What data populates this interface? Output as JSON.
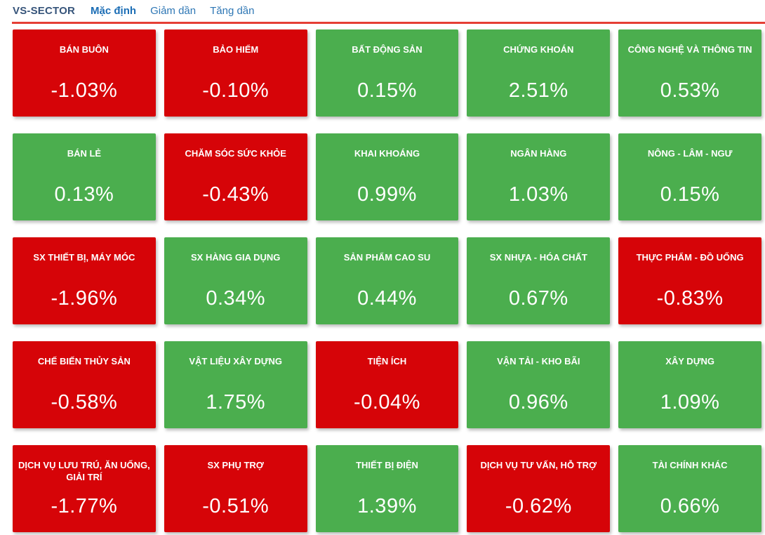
{
  "header": {
    "title": "VS-SECTOR",
    "tabs": [
      {
        "label": "Mặc định",
        "active": true
      },
      {
        "label": "Giảm dần",
        "active": false
      },
      {
        "label": "Tăng dần",
        "active": false
      }
    ]
  },
  "colors": {
    "gain": "#4bae4e",
    "loss": "#d60408",
    "divider": "#e53e35",
    "header_title": "#36547a",
    "tab_active": "#1b6db5",
    "tab_link": "#2e77b5"
  },
  "chart_data": {
    "type": "heatmap",
    "title": "VS-SECTOR",
    "columns": 5,
    "rows": 5,
    "value_unit": "%",
    "tiles": [
      {
        "name": "BÁN BUÔN",
        "value": -1.03,
        "display": "-1.03%",
        "direction": "down"
      },
      {
        "name": "BẢO HIỂM",
        "value": -0.1,
        "display": "-0.10%",
        "direction": "down"
      },
      {
        "name": "BẤT ĐỘNG SẢN",
        "value": 0.15,
        "display": "0.15%",
        "direction": "up"
      },
      {
        "name": "CHỨNG KHOÁN",
        "value": 2.51,
        "display": "2.51%",
        "direction": "up"
      },
      {
        "name": "CÔNG NGHỆ VÀ THÔNG TIN",
        "value": 0.53,
        "display": "0.53%",
        "direction": "up"
      },
      {
        "name": "BÁN LẺ",
        "value": 0.13,
        "display": "0.13%",
        "direction": "up"
      },
      {
        "name": "CHĂM SÓC SỨC KHỎE",
        "value": -0.43,
        "display": "-0.43%",
        "direction": "down"
      },
      {
        "name": "KHAI KHOÁNG",
        "value": 0.99,
        "display": "0.99%",
        "direction": "up"
      },
      {
        "name": "NGÂN HÀNG",
        "value": 1.03,
        "display": "1.03%",
        "direction": "up"
      },
      {
        "name": "NÔNG - LÂM - NGƯ",
        "value": 0.15,
        "display": "0.15%",
        "direction": "up"
      },
      {
        "name": "SX THIẾT BỊ, MÁY MÓC",
        "value": -1.96,
        "display": "-1.96%",
        "direction": "down"
      },
      {
        "name": "SX HÀNG GIA DỤNG",
        "value": 0.34,
        "display": "0.34%",
        "direction": "up"
      },
      {
        "name": "SẢN PHẨM CAO SU",
        "value": 0.44,
        "display": "0.44%",
        "direction": "up"
      },
      {
        "name": "SX NHỰA - HÓA CHẤT",
        "value": 0.67,
        "display": "0.67%",
        "direction": "up"
      },
      {
        "name": "THỰC PHẨM - ĐỒ UỐNG",
        "value": -0.83,
        "display": "-0.83%",
        "direction": "down"
      },
      {
        "name": "CHẾ BIẾN THỦY SẢN",
        "value": -0.58,
        "display": "-0.58%",
        "direction": "down"
      },
      {
        "name": "VẬT LIỆU XÂY DỰNG",
        "value": 1.75,
        "display": "1.75%",
        "direction": "up"
      },
      {
        "name": "TIỆN ÍCH",
        "value": -0.04,
        "display": "-0.04%",
        "direction": "down"
      },
      {
        "name": "VẬN TẢI - KHO BÃI",
        "value": 0.96,
        "display": "0.96%",
        "direction": "up"
      },
      {
        "name": "XÂY DỰNG",
        "value": 1.09,
        "display": "1.09%",
        "direction": "up"
      },
      {
        "name": "DỊCH VỤ LƯU TRÚ, ĂN UỐNG, GIẢI TRÍ",
        "value": -1.77,
        "display": "-1.77%",
        "direction": "down"
      },
      {
        "name": "SX PHỤ TRỢ",
        "value": -0.51,
        "display": "-0.51%",
        "direction": "down"
      },
      {
        "name": "THIẾT BỊ ĐIỆN",
        "value": 1.39,
        "display": "1.39%",
        "direction": "up"
      },
      {
        "name": "DỊCH VỤ TƯ VẤN, HỖ TRỢ",
        "value": -0.62,
        "display": "-0.62%",
        "direction": "down"
      },
      {
        "name": "TÀI CHÍNH KHÁC",
        "value": 0.66,
        "display": "0.66%",
        "direction": "up"
      }
    ]
  }
}
